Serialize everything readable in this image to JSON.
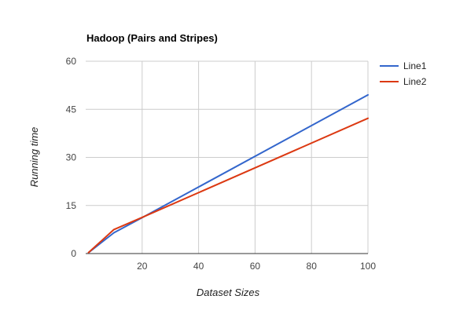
{
  "chart_data": {
    "type": "line",
    "title": "Hadoop (Pairs and Stripes)",
    "xlabel": "Dataset Sizes",
    "ylabel": "Running time",
    "xlim": [
      0,
      100
    ],
    "ylim": [
      0,
      60
    ],
    "x_ticks": [
      20,
      40,
      60,
      80,
      100
    ],
    "y_ticks": [
      0,
      15,
      30,
      45,
      60
    ],
    "grid": true,
    "legend_position": "right",
    "series": [
      {
        "name": "Line1",
        "color": "#3366cc",
        "x": [
          1,
          10,
          20,
          100
        ],
        "y": [
          0.3,
          6.5,
          11.2,
          49.5
        ]
      },
      {
        "name": "Line2",
        "color": "#dc3912",
        "x": [
          1,
          10,
          20,
          100
        ],
        "y": [
          0.3,
          7.5,
          11.3,
          42.2
        ]
      }
    ]
  }
}
